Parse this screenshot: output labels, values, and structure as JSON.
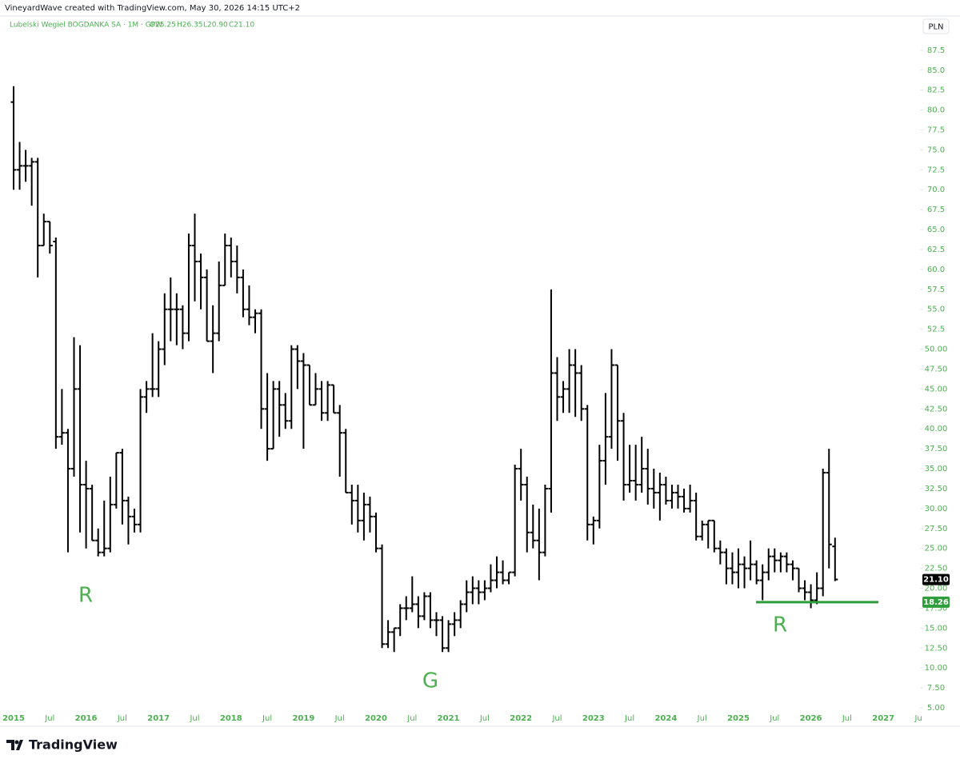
{
  "header": "VineyardWave created with TradingView.com, May 30, 2026 14:15 UTC+2",
  "brand": "TradingView",
  "chart_data": {
    "type": "ohlc",
    "symbol": "Lubelski Wegiel BOGDANKA SA · 1M · GPW",
    "ohlc_labels": {
      "open": "O25.25",
      "high": "H26.35",
      "low": "L20.90",
      "close": "C21.10"
    },
    "currency": "PLN",
    "color": "#000000",
    "axis_color": "#4caf50",
    "x": [
      "2015-01",
      "2015-02",
      "2015-03",
      "2015-04",
      "2015-05",
      "2015-06",
      "2015-07",
      "2015-08",
      "2015-09",
      "2015-10",
      "2015-11",
      "2015-12",
      "2016-01",
      "2016-02",
      "2016-03",
      "2016-04",
      "2016-05",
      "2016-06",
      "2016-07",
      "2016-08",
      "2016-09",
      "2016-10",
      "2016-11",
      "2016-12",
      "2017-01",
      "2017-02",
      "2017-03",
      "2017-04",
      "2017-05",
      "2017-06",
      "2017-07",
      "2017-08",
      "2017-09",
      "2017-10",
      "2017-11",
      "2017-12",
      "2018-01",
      "2018-02",
      "2018-03",
      "2018-04",
      "2018-05",
      "2018-06",
      "2018-07",
      "2018-08",
      "2018-09",
      "2018-10",
      "2018-11",
      "2018-12",
      "2019-01",
      "2019-02",
      "2019-03",
      "2019-04",
      "2019-05",
      "2019-06",
      "2019-07",
      "2019-08",
      "2019-09",
      "2019-10",
      "2019-11",
      "2019-12",
      "2020-01",
      "2020-02",
      "2020-03",
      "2020-04",
      "2020-05",
      "2020-06",
      "2020-07",
      "2020-08",
      "2020-09",
      "2020-10",
      "2020-11",
      "2020-12",
      "2021-01",
      "2021-02",
      "2021-03",
      "2021-04",
      "2021-05",
      "2021-06",
      "2021-07",
      "2021-08",
      "2021-09",
      "2021-10",
      "2021-11",
      "2021-12",
      "2022-01",
      "2022-02",
      "2022-03",
      "2022-04",
      "2022-05",
      "2022-06",
      "2022-07",
      "2022-08",
      "2022-09",
      "2022-10",
      "2022-11",
      "2022-12",
      "2023-01",
      "2023-02",
      "2023-03",
      "2023-04",
      "2023-05",
      "2023-06",
      "2023-07",
      "2023-08",
      "2023-09",
      "2023-10",
      "2023-11",
      "2023-12",
      "2024-01",
      "2024-02",
      "2024-03",
      "2024-04",
      "2024-05",
      "2024-06",
      "2024-07",
      "2024-08",
      "2024-09",
      "2024-10",
      "2024-11",
      "2024-12",
      "2025-01",
      "2025-02",
      "2025-03",
      "2025-04",
      "2025-05",
      "2025-06",
      "2025-07",
      "2025-08",
      "2025-09",
      "2025-10",
      "2025-11",
      "2025-12",
      "2026-01",
      "2026-02",
      "2026-03",
      "2026-04",
      "2026-05"
    ],
    "open": [
      81,
      72.5,
      73,
      73,
      73.5,
      63,
      66,
      63.5,
      39,
      39.5,
      35,
      45,
      33,
      32.5,
      26,
      24.5,
      25,
      30.5,
      37,
      31,
      29,
      28,
      44,
      45,
      45,
      50,
      55,
      55,
      55,
      52,
      63,
      61,
      59,
      51,
      52,
      58,
      63,
      61,
      59,
      55,
      54,
      54.5,
      42.5,
      37.5,
      45,
      43,
      41,
      50,
      48.5,
      48,
      43,
      45,
      42,
      45.5,
      42,
      39.5,
      32,
      31,
      28.5,
      30.5,
      29,
      25,
      13,
      14.5,
      15,
      17.5,
      17.5,
      18,
      16.5,
      19,
      16,
      16,
      12.5,
      15.5,
      16,
      18,
      19.5,
      20,
      19.5,
      20,
      21,
      22,
      21,
      22,
      35,
      33,
      27,
      26,
      24.5,
      32.5,
      47,
      44,
      45,
      48,
      47,
      42.5,
      28,
      28.5,
      36,
      39,
      48,
      41,
      33,
      33.5,
      33,
      35,
      32.5,
      32,
      33,
      31,
      32,
      31.5,
      30,
      31,
      26.5,
      28,
      28.5,
      25,
      24.5,
      22.5,
      22,
      23,
      22.5,
      23,
      21,
      22,
      24,
      23.5,
      24,
      23,
      22.5,
      20,
      19.5,
      18.5,
      20,
      34.5,
      25.25
    ],
    "high": [
      83,
      76,
      75,
      74,
      74,
      67,
      66,
      64,
      45,
      40,
      51.5,
      50.5,
      36,
      33,
      27.5,
      31,
      34,
      37,
      37.5,
      31.5,
      30,
      45,
      46,
      52,
      51,
      57,
      59,
      57,
      55.5,
      64.5,
      67,
      62,
      60,
      55.5,
      61,
      64.5,
      64,
      63,
      60,
      58,
      55,
      55,
      47,
      46,
      46,
      44.5,
      50.5,
      50.5,
      49.5,
      48,
      47,
      46,
      46,
      45.5,
      43,
      40,
      33,
      33,
      32,
      31.5,
      29.5,
      25.5,
      16,
      15,
      18,
      19,
      21.5,
      19,
      19.5,
      19.5,
      17,
      16.5,
      16,
      17,
      18.5,
      21,
      21.5,
      21,
      21,
      23,
      24,
      23.5,
      22,
      35.5,
      37.5,
      34,
      30.5,
      30,
      33,
      57.5,
      49,
      46,
      50,
      50,
      48,
      43,
      29,
      38,
      44.5,
      50,
      48,
      42,
      38,
      38,
      39,
      37.5,
      35,
      34.5,
      34,
      33,
      33,
      32.5,
      33,
      32,
      28.5,
      28.5,
      28.5,
      26,
      25,
      24.5,
      25,
      24,
      26,
      23.5,
      23,
      25,
      25,
      24.5,
      24.5,
      23.5,
      22.5,
      21,
      20.5,
      22,
      35,
      37.5,
      26.35
    ],
    "low": [
      70,
      70,
      71,
      68,
      59,
      63,
      62,
      37.5,
      38,
      24.5,
      34,
      27,
      25,
      26,
      24,
      24,
      24.5,
      30,
      28,
      25.5,
      27,
      27,
      42,
      44,
      44,
      48,
      51,
      50.5,
      50,
      51,
      56,
      55,
      51,
      47,
      51,
      58,
      59,
      57,
      54,
      53,
      52,
      40,
      36,
      37.5,
      39,
      40,
      40,
      45,
      37.5,
      43,
      43,
      41,
      41,
      42,
      34,
      32,
      28,
      27,
      26,
      27,
      24.5,
      12.5,
      12.5,
      12,
      14,
      16,
      17,
      15,
      16,
      15,
      14,
      12,
      12,
      14,
      15,
      17,
      18,
      18,
      18.5,
      19.5,
      20,
      20.5,
      20.5,
      21.5,
      31,
      24.5,
      25,
      21,
      24,
      29.5,
      41,
      42,
      42,
      41.5,
      41,
      26,
      25.5,
      27.5,
      33,
      37.5,
      36,
      31,
      32,
      31,
      32,
      30.5,
      30,
      28.5,
      30.5,
      30,
      30,
      29.5,
      29.5,
      26,
      26,
      25,
      24.5,
      23,
      20.5,
      20.5,
      20,
      20,
      21,
      20.5,
      18.5,
      21,
      22,
      22,
      22,
      21,
      19.5,
      18.5,
      17.5,
      18,
      19,
      22.5,
      20.9
    ],
    "close": [
      72.5,
      73,
      73,
      73.5,
      63,
      66,
      63,
      39,
      39.5,
      35,
      45,
      33,
      32.5,
      26,
      24.5,
      25,
      30.5,
      37,
      31,
      29,
      28,
      44,
      45,
      45,
      50,
      55,
      55,
      55,
      52,
      63,
      61,
      59,
      51,
      52,
      58,
      63,
      61,
      59,
      55,
      54,
      54.5,
      42.5,
      37.5,
      45,
      43,
      41,
      50,
      48.5,
      48,
      43,
      45,
      42,
      45.5,
      42,
      39.5,
      32,
      31,
      28.5,
      30.5,
      29,
      25,
      13,
      14.5,
      15,
      17.5,
      17.5,
      18,
      16.5,
      19,
      16,
      16,
      12.5,
      15.5,
      16,
      18,
      19.5,
      20,
      19.5,
      20,
      21,
      22,
      21,
      22,
      35,
      33,
      27,
      26,
      24.5,
      32.5,
      47,
      44,
      45,
      48,
      47,
      42.5,
      28,
      28.5,
      36,
      39,
      48,
      41,
      33,
      33.5,
      33,
      35,
      32.5,
      32,
      33,
      31,
      32,
      31.5,
      30,
      31,
      26.5,
      28,
      28.5,
      25,
      24.5,
      22.5,
      22,
      23,
      22.5,
      23,
      21,
      22,
      24,
      23.5,
      24,
      23,
      22.5,
      20,
      19.5,
      18.5,
      20,
      34.5,
      25.5,
      21.1
    ],
    "last_price_label": "21.10",
    "hline": {
      "value": 18.26,
      "color": "#2e9e3a"
    },
    "annotations": [
      "R",
      "G",
      "R"
    ],
    "ylim": [
      4.7,
      91.8
    ],
    "yticks": [
      {
        "value": 5,
        "label": "5.00"
      },
      {
        "value": 7.5,
        "label": "7.50"
      },
      {
        "value": 10,
        "label": "10.00"
      },
      {
        "value": 12.5,
        "label": "12.50"
      },
      {
        "value": 15,
        "label": "15.00"
      },
      {
        "value": 17.5,
        "label": "17.50"
      },
      {
        "value": 20,
        "label": "20.00"
      },
      {
        "value": 22.5,
        "label": "22.50"
      },
      {
        "value": 25,
        "label": "25.00"
      },
      {
        "value": 27.5,
        "label": "27.50"
      },
      {
        "value": 30,
        "label": "30.00"
      },
      {
        "value": 32.5,
        "label": "32.50"
      },
      {
        "value": 35,
        "label": "35.00"
      },
      {
        "value": 37.5,
        "label": "37.50"
      },
      {
        "value": 40,
        "label": "40.00"
      },
      {
        "value": 42.5,
        "label": "42.50"
      },
      {
        "value": 45,
        "label": "45.00"
      },
      {
        "value": 47.5,
        "label": "47.50"
      },
      {
        "value": 50,
        "label": "50.00"
      },
      52.5,
      {
        "value": 55,
        "label": "55.0"
      },
      57.5,
      {
        "value": 60,
        "label": "60.0"
      },
      62.5,
      {
        "value": 65,
        "label": "65.0"
      },
      67.5,
      {
        "value": 70,
        "label": "70.0"
      },
      72.5,
      {
        "value": 75,
        "label": "75.0"
      },
      77.5,
      {
        "value": 80,
        "label": "80.0"
      },
      82.5,
      {
        "value": 85,
        "label": "85.0"
      },
      87.5
    ],
    "xticks": [
      {
        "value": "2015-01",
        "label": "2015"
      },
      {
        "value": "2015-07",
        "label": "Jul"
      },
      {
        "value": "2016-01",
        "label": "2016"
      },
      {
        "value": "2016-07",
        "label": "Jul"
      },
      {
        "value": "2017-01",
        "label": "2017"
      },
      {
        "value": "2017-07",
        "label": "Jul"
      },
      {
        "value": "2018-01",
        "label": "2018"
      },
      {
        "value": "2018-07",
        "label": "Jul"
      },
      {
        "value": "2019-01",
        "label": "2019"
      },
      {
        "value": "2019-07",
        "label": "Jul"
      },
      {
        "value": "2020-01",
        "label": "2020"
      },
      {
        "value": "2020-07",
        "label": "Jul"
      },
      {
        "value": "2021-01",
        "label": "2021"
      },
      {
        "value": "2021-07",
        "label": "Jul"
      },
      {
        "value": "2022-01",
        "label": "2022"
      },
      {
        "value": "2022-07",
        "label": "Jul"
      },
      {
        "value": "2023-01",
        "label": "2023"
      },
      {
        "value": "2023-07",
        "label": "Jul"
      },
      {
        "value": "2024-01",
        "label": "2024"
      },
      {
        "value": "2024-07",
        "label": "Jul"
      },
      {
        "value": "2025-01",
        "label": "2025"
      },
      {
        "value": "2025-07",
        "label": "Jul"
      },
      {
        "value": "2026-01",
        "label": "2026"
      },
      {
        "value": "2026-07",
        "label": "Jul"
      },
      {
        "value": "2027-01",
        "label": "2027"
      },
      {
        "value": "2027-07",
        "label": "Jul"
      }
    ]
  }
}
